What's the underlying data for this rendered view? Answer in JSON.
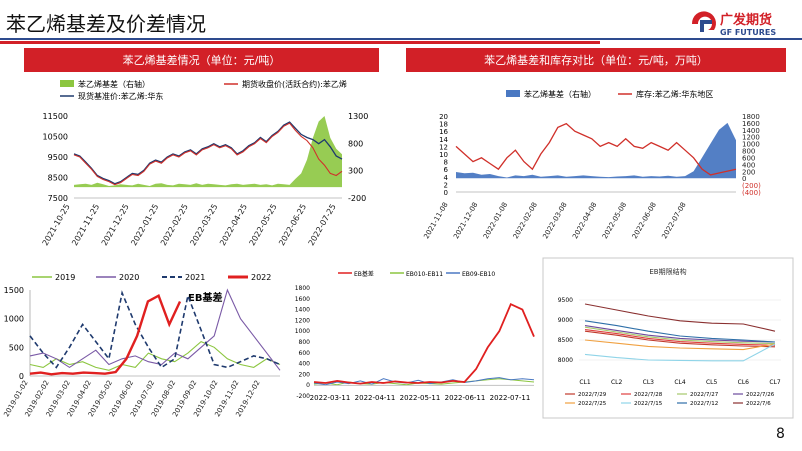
{
  "page": {
    "title": "苯乙烯基差及价差情况",
    "page_number": "8"
  },
  "logo": {
    "cn": "广发期货",
    "en": "GF FUTURES"
  },
  "colors": {
    "accent_red": "#d22027",
    "brand_blue": "#2e4b8e",
    "chart_green": "#8cc640",
    "chart_red": "#d0302a",
    "chart_darkblue": "#1f3a6e",
    "chart_blue": "#4a78c2",
    "chart_purple": "#7a5aa6"
  },
  "panel1": {
    "header": "苯乙烯基差情况（单位：元/吨）"
  },
  "panel2": {
    "header": "苯乙烯基差和库存对比（单位：元/吨，万吨）"
  },
  "chart_data": [
    {
      "type": "line",
      "title": "苯乙烯基差情况（单位：元/吨）",
      "legend": [
        "苯乙烯基差（右轴）",
        "期货收盘价(活跃合约):苯乙烯",
        "现货基准价:苯乙烯:华东"
      ],
      "left_yticks": [
        "11500",
        "10500",
        "9500",
        "8500",
        "7500"
      ],
      "right_yticks": [
        "1300",
        "800",
        "300",
        "-200"
      ],
      "x_ticks": [
        "2021-10-25",
        "2021-11-25",
        "2021-12-25",
        "2022-01-25",
        "2022-02-25",
        "2022-03-25",
        "2022-04-25",
        "2022-05-25",
        "2022-06-25",
        "2022-07-25"
      ],
      "ylim": [
        7500,
        11500
      ],
      "y2lim": [
        -200,
        1300
      ],
      "series": [
        {
          "name": "期货收盘价(活跃合约):苯乙烯",
          "values": [
            9600,
            9500,
            9200,
            8900,
            8550,
            8400,
            8300,
            8150,
            8250,
            8450,
            8650,
            8600,
            8800,
            9150,
            9300,
            9200,
            9450,
            9600,
            9500,
            9700,
            9800,
            9600,
            9850,
            9950,
            10100,
            9950,
            10050,
            9900,
            9600,
            9750,
            10000,
            10150,
            10400,
            10200,
            10500,
            10700,
            11000,
            11150,
            10800,
            10500,
            10300,
            9950,
            9400,
            9100,
            8700,
            8600,
            8800
          ]
        },
        {
          "name": "现货基准价:苯乙烯:华东",
          "values": [
            9650,
            9550,
            9250,
            8950,
            8600,
            8450,
            8350,
            8200,
            8300,
            8500,
            8700,
            8650,
            8850,
            9200,
            9350,
            9250,
            9500,
            9650,
            9550,
            9750,
            9850,
            9650,
            9900,
            10000,
            10150,
            10000,
            10100,
            9950,
            9650,
            9800,
            10050,
            10200,
            10450,
            10250,
            10550,
            10750,
            11050,
            11200,
            10900,
            10600,
            10450,
            10350,
            10150,
            10350,
            10000,
            9550,
            9400
          ]
        },
        {
          "name": "苯乙烯基差（右轴）",
          "values": [
            40,
            50,
            60,
            40,
            80,
            50,
            20,
            30,
            50,
            40,
            30,
            60,
            40,
            20,
            60,
            70,
            40,
            30,
            60,
            50,
            40,
            70,
            40,
            60,
            50,
            40,
            30,
            50,
            60,
            40,
            50,
            60,
            40,
            50,
            30,
            60,
            50,
            40,
            150,
            250,
            500,
            900,
            1200,
            1300,
            900,
            700,
            600
          ]
        }
      ]
    },
    {
      "type": "area",
      "title": "苯乙烯基差和库存对比（单位：元/吨，万吨）",
      "legend": [
        "苯乙烯基差（右轴）",
        "库存:苯乙烯:华东地区"
      ],
      "left_yticks": [
        "20",
        "18",
        "16",
        "14",
        "12",
        "10",
        "8",
        "6",
        "4",
        "2",
        "0"
      ],
      "right_yticks": [
        "1800",
        "1600",
        "1400",
        "1200",
        "1000",
        "800",
        "600",
        "400",
        "200",
        "0",
        "(200)",
        "(400)"
      ],
      "x_ticks": [
        "2021-11-08",
        "2021-12-08",
        "2022-01-08",
        "2022-02-08",
        "2022-03-08",
        "2022-04-08",
        "2022-05-08",
        "2022-06-08",
        "2022-07-08"
      ],
      "ylim": [
        0,
        20
      ],
      "y2lim": [
        -400,
        1800
      ],
      "series": [
        {
          "name": "库存:苯乙烯:华东地区",
          "values": [
            12,
            10,
            8,
            9,
            7.5,
            6,
            9,
            11,
            8,
            6,
            10,
            13,
            17,
            18,
            16,
            15,
            14,
            12,
            13,
            12,
            14,
            12,
            11.5,
            13,
            12,
            11,
            13,
            11,
            9,
            6,
            4.5,
            5,
            5.5,
            6
          ]
        },
        {
          "name": "苯乙烯基差（右轴）",
          "values": [
            180,
            140,
            160,
            100,
            120,
            60,
            20,
            80,
            60,
            100,
            40,
            60,
            80,
            40,
            60,
            80,
            60,
            40,
            30,
            50,
            60,
            80,
            40,
            60,
            50,
            70,
            40,
            60,
            200,
            600,
            1000,
            1400,
            1600,
            1100
          ]
        }
      ]
    },
    {
      "type": "line",
      "title": "EB基差",
      "legend": [
        "2019",
        "2020",
        "2021",
        "2022"
      ],
      "yticks": [
        "1500",
        "1000",
        "500",
        "0"
      ],
      "x_ticks": [
        "2019-01-02",
        "2019-02-02",
        "2019-03-02",
        "2019-04-02",
        "2019-05-02",
        "2019-06-02",
        "2019-07-02",
        "2019-08-02",
        "2019-09-02",
        "2019-10-02",
        "2019-11-02",
        "2019-12-02"
      ],
      "ylim": [
        0,
        1500
      ],
      "series": [
        {
          "name": "2019",
          "values": [
            200,
            150,
            300,
            200,
            250,
            150,
            100,
            200,
            150,
            400,
            300,
            250,
            400,
            600,
            500,
            300,
            200,
            150,
            300,
            200
          ]
        },
        {
          "name": "2020",
          "values": [
            350,
            400,
            300,
            150,
            300,
            450,
            200,
            300,
            350,
            250,
            200,
            400,
            300,
            500,
            700,
            1500,
            1000,
            700,
            400,
            100
          ]
        },
        {
          "name": "2021",
          "values": [
            700,
            400,
            150,
            500,
            900,
            600,
            300,
            1450,
            900,
            500,
            150,
            300,
            1400,
            800,
            200,
            150,
            250,
            350,
            300,
            200
          ]
        },
        {
          "name": "2022",
          "values": [
            40,
            60,
            30,
            50,
            40,
            60,
            50,
            40,
            70,
            300,
            700,
            1300,
            1400,
            900,
            1300
          ]
        }
      ]
    },
    {
      "type": "line",
      "title": "EB spreads",
      "legend": [
        "EB基差",
        "EB010-EB11",
        "EB09-EB10"
      ],
      "yticks": [
        "1800",
        "1600",
        "1400",
        "1200",
        "1000",
        "800",
        "600",
        "400",
        "200",
        "0",
        "-200"
      ],
      "x_ticks": [
        "2022-03-11",
        "2022-04-11",
        "2022-05-11",
        "2022-06-11",
        "2022-07-11"
      ],
      "ylim": [
        -200,
        1800
      ],
      "series": [
        {
          "name": "EB基差",
          "values": [
            60,
            40,
            80,
            50,
            30,
            60,
            40,
            70,
            50,
            40,
            60,
            50,
            80,
            60,
            300,
            700,
            1000,
            1500,
            1400,
            900
          ]
        },
        {
          "name": "EB010-EB11",
          "values": [
            20,
            40,
            10,
            60,
            30,
            20,
            50,
            30,
            10,
            40,
            30,
            20,
            40,
            60,
            80,
            100,
            120,
            100,
            80,
            60
          ]
        },
        {
          "name": "EB09-EB10",
          "values": [
            40,
            10,
            60,
            30,
            80,
            20,
            120,
            60,
            40,
            90,
            30,
            60,
            100,
            50,
            80,
            120,
            140,
            100,
            120,
            100
          ]
        }
      ]
    },
    {
      "type": "line",
      "title": "EB期限结构",
      "legend": [
        "2022/7/29",
        "2022/7/28",
        "2022/7/27",
        "2022/7/26",
        "2022/7/25",
        "2022/7/15",
        "2022/7/12",
        "2022/7/6"
      ],
      "categories": [
        "CL1",
        "CL2",
        "CL3",
        "CL4",
        "CL5",
        "CL6",
        "CL7"
      ],
      "yticks": [
        "9500",
        "9000",
        "8500",
        "8000"
      ],
      "ylim": [
        7800,
        9600
      ],
      "series": [
        {
          "name": "2022/7/29",
          "values": [
            8720,
            8620,
            8500,
            8420,
            8380,
            8350,
            8330
          ]
        },
        {
          "name": "2022/7/28",
          "values": [
            8760,
            8660,
            8540,
            8460,
            8420,
            8390,
            8370
          ]
        },
        {
          "name": "2022/7/27",
          "values": [
            8820,
            8700,
            8580,
            8500,
            8460,
            8430,
            8410
          ]
        },
        {
          "name": "2022/7/26",
          "values": [
            8860,
            8740,
            8620,
            8540,
            8500,
            8470,
            8450
          ]
        },
        {
          "name": "2022/7/25",
          "values": [
            8500,
            8420,
            8340,
            8300,
            8280,
            8260,
            8400
          ]
        },
        {
          "name": "2022/7/15",
          "values": [
            8140,
            8060,
            8000,
            7990,
            7980,
            7980,
            8400
          ]
        },
        {
          "name": "2022/7/12",
          "values": [
            8980,
            8860,
            8720,
            8600,
            8540,
            8500,
            8450
          ]
        },
        {
          "name": "2022/7/6",
          "values": [
            9400,
            9250,
            9100,
            8980,
            8920,
            8900,
            8720
          ]
        }
      ]
    }
  ]
}
